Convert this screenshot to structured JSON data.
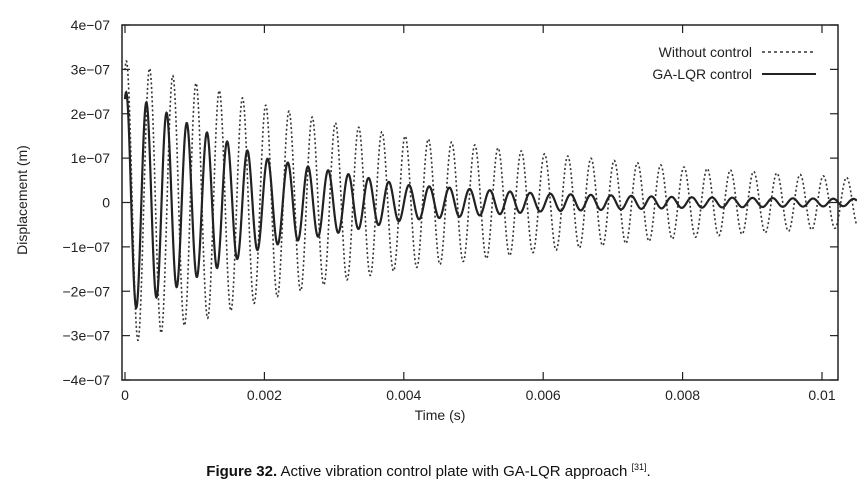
{
  "chart_data": {
    "type": "line",
    "title": "",
    "xlabel": "Time (s)",
    "ylabel": "Displacement (m)",
    "xlim": [
      0,
      0.0105
    ],
    "ylim": [
      -4e-07,
      4e-07
    ],
    "xticks": [
      0,
      0.002,
      0.004,
      0.006,
      0.008,
      0.01
    ],
    "xtick_labels": [
      "0",
      "0.002",
      "0.004",
      "0.006",
      "0.008",
      "0.01"
    ],
    "yticks": [
      4e-07,
      3e-07,
      2e-07,
      1e-07,
      0,
      -1e-07,
      -2e-07,
      -3e-07,
      -4e-07
    ],
    "ytick_labels": [
      "4e−07",
      "3e−07",
      "2e−07",
      "1e−07",
      "0",
      "−1e−07",
      "−2e−07",
      "−3e−07",
      "−4e−07"
    ],
    "grid": false,
    "legend_position": "top-right",
    "series": [
      {
        "name": "Without control",
        "style": "dotted",
        "frequency_hz": 3000,
        "envelope_t": [
          0,
          0.001,
          0.002,
          0.003,
          0.004,
          0.006,
          0.008,
          0.0105
        ],
        "envelope_amp": [
          3.2e-07,
          2.7e-07,
          2.2e-07,
          1.8e-07,
          1.5e-07,
          1.1e-07,
          8e-08,
          5.5e-08
        ]
      },
      {
        "name": "GA-LQR control",
        "style": "solid",
        "frequency_hz": 3450,
        "envelope_t": [
          0,
          0.001,
          0.002,
          0.003,
          0.004,
          0.006,
          0.008,
          0.0105
        ],
        "envelope_amp": [
          2.5e-07,
          1.7e-07,
          1e-07,
          7e-08,
          4e-08,
          2e-08,
          1.2e-08,
          8e-09
        ]
      }
    ]
  },
  "caption": {
    "label": "Figure 32.",
    "text": " Active vibration control plate with GA-LQR approach ",
    "ref": "[31]",
    "end": "."
  }
}
